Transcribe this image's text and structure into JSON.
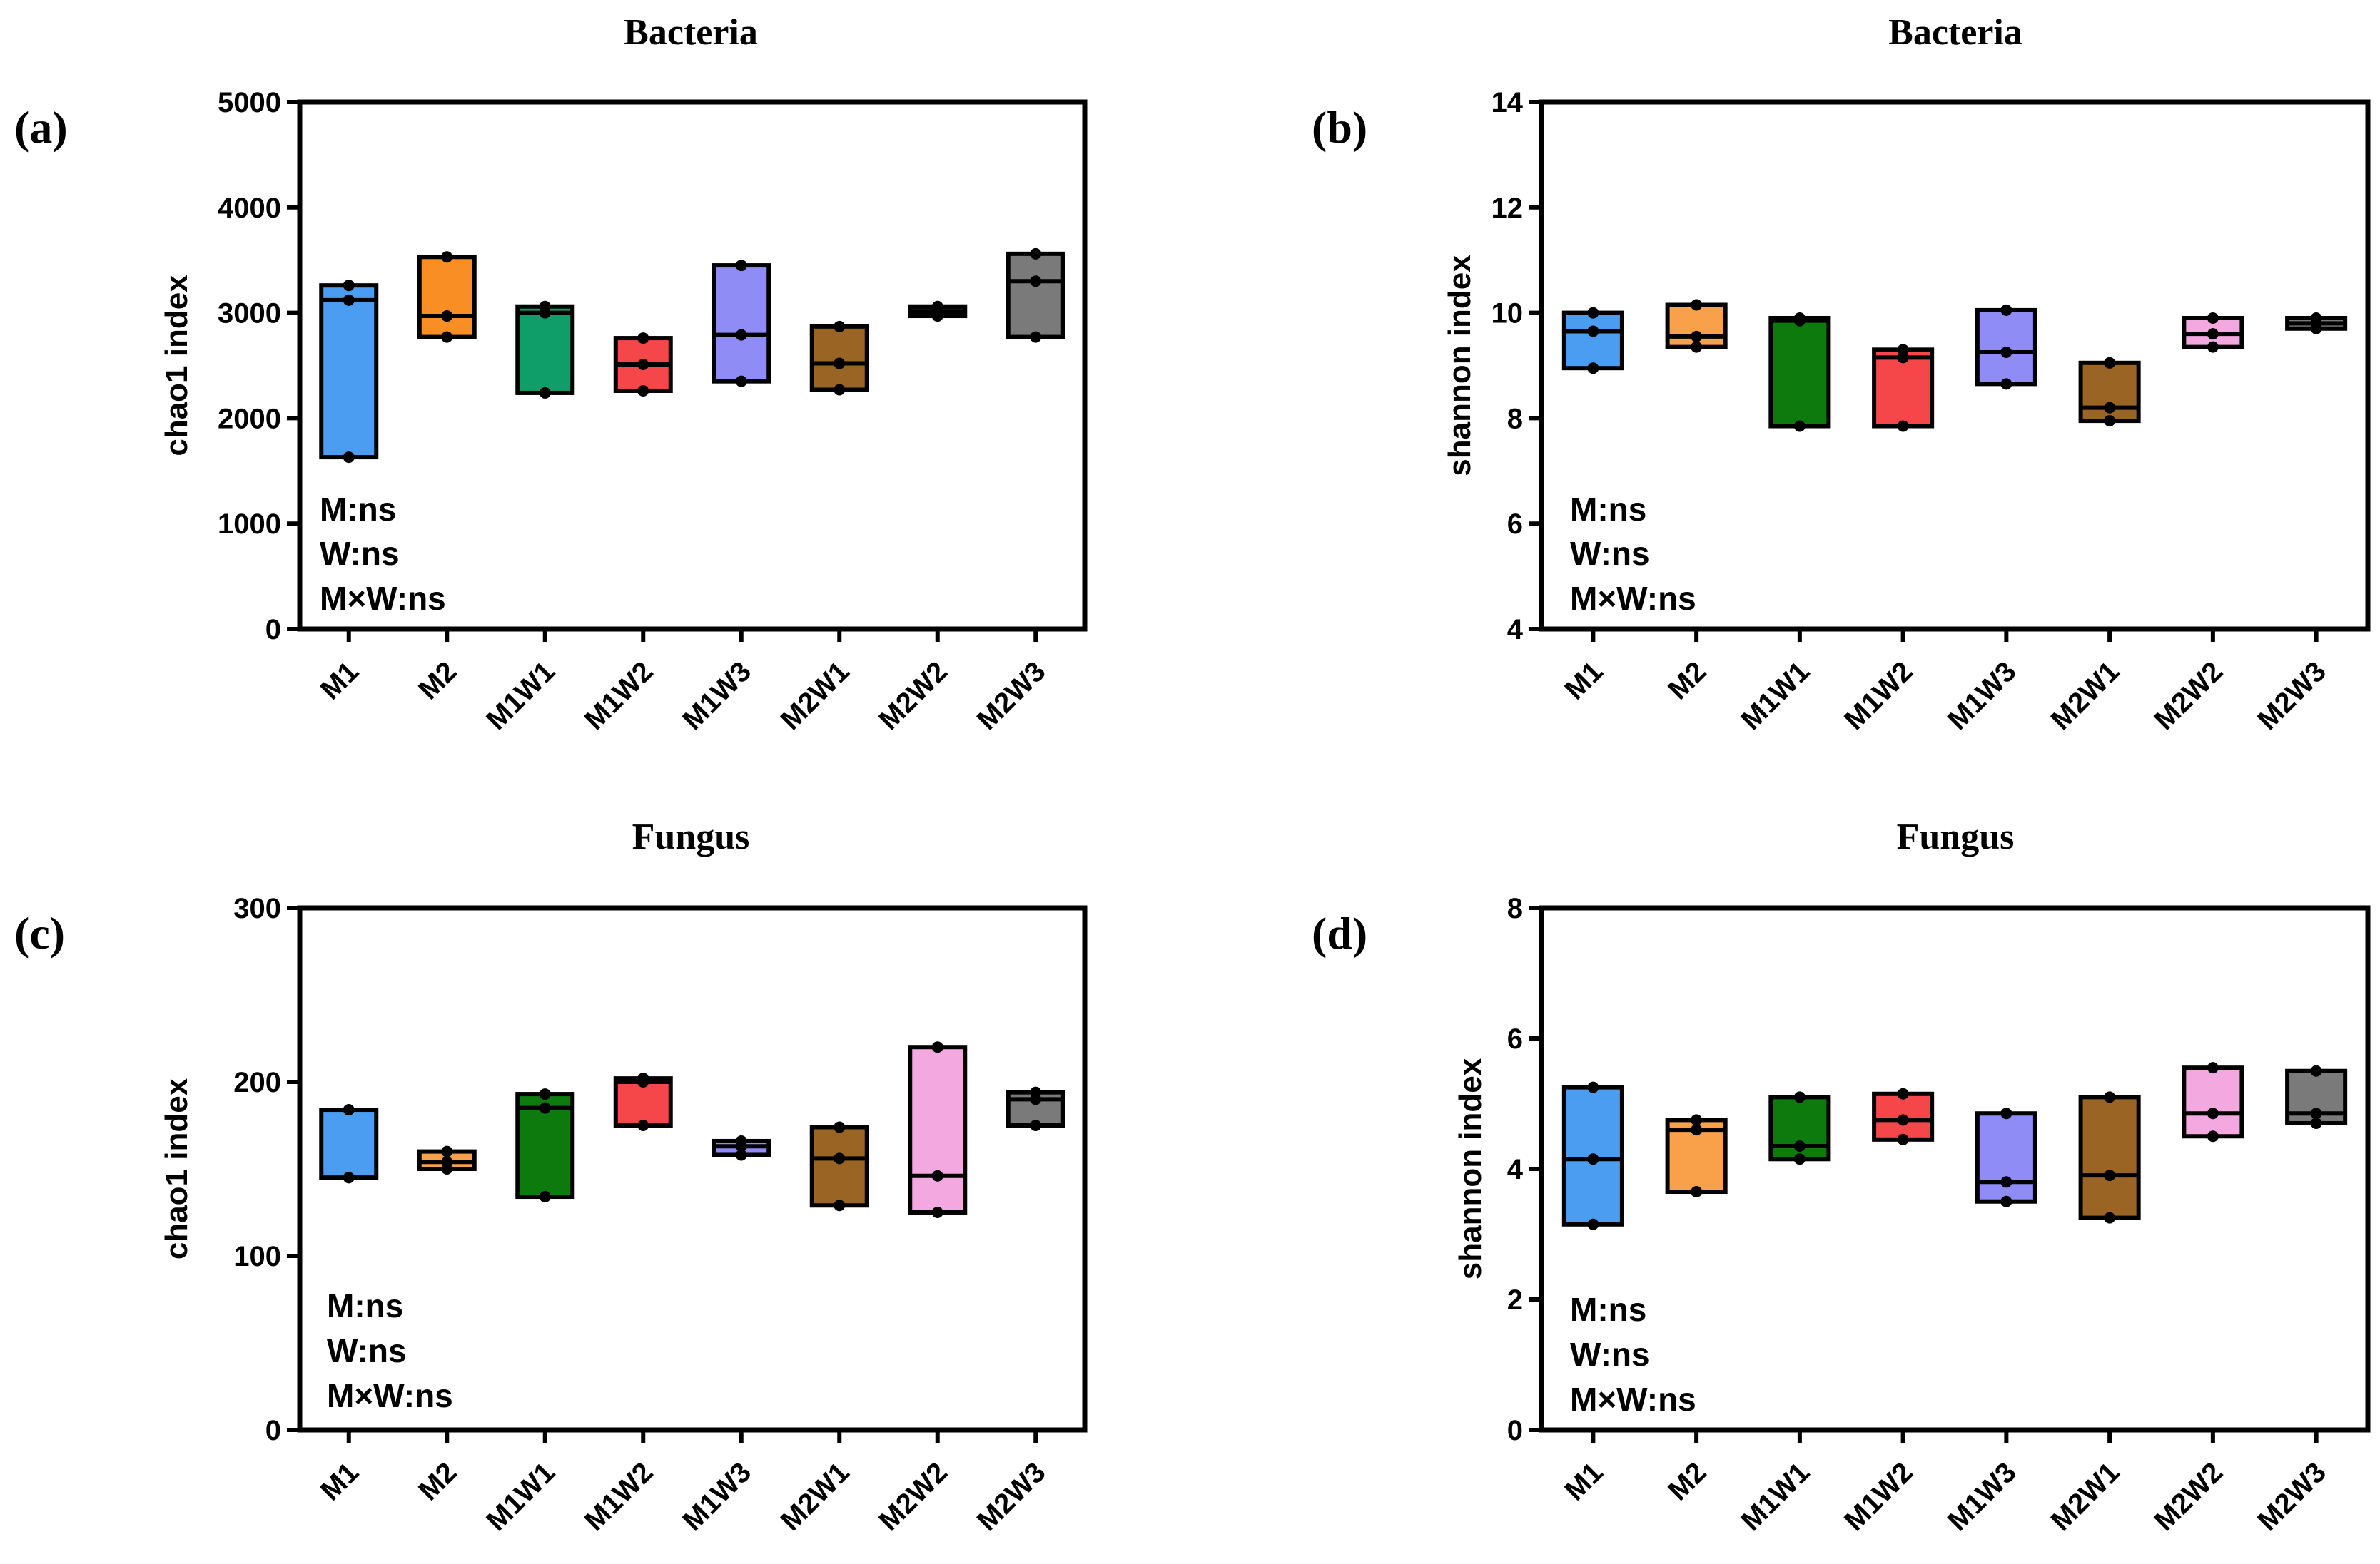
{
  "figure": {
    "caption_labels": [
      "(a)",
      "(b)",
      "(c)",
      "(d)"
    ]
  },
  "chart_data": [
    {
      "type": "floating-bar",
      "panel_label": "(a)",
      "title": "Bacteria",
      "ylabel": "chao1 index",
      "xlabel": "",
      "ylim": [
        0,
        5000
      ],
      "yticks": [
        0,
        1000,
        2000,
        3000,
        4000,
        5000
      ],
      "categories": [
        "M1",
        "M2",
        "M1W1",
        "M1W2",
        "M1W3",
        "M2W1",
        "M2W2",
        "M2W3"
      ],
      "colors": [
        "#4a9df0",
        "#f98f24",
        "#0f9e6a",
        "#f5474a",
        "#8f8cf5",
        "#9a6424",
        "#111111",
        "#7a7a7a"
      ],
      "series": [
        {
          "name": "min",
          "values": [
            1630,
            2770,
            2240,
            2260,
            2350,
            2270,
            2970,
            2770
          ]
        },
        {
          "name": "median",
          "values": [
            3120,
            2970,
            3000,
            2510,
            2790,
            2520,
            3010,
            3300
          ]
        },
        {
          "name": "max",
          "values": [
            3260,
            3530,
            3060,
            2760,
            3450,
            2870,
            3060,
            3560
          ]
        }
      ],
      "points": [
        [
          1630,
          3120,
          3260
        ],
        [
          2770,
          2970,
          3530
        ],
        [
          2240,
          3000,
          3060
        ],
        [
          2260,
          2510,
          2760
        ],
        [
          2350,
          2790,
          3450
        ],
        [
          2270,
          2520,
          2870
        ],
        [
          2970,
          3010,
          3060
        ],
        [
          2770,
          3300,
          3560
        ]
      ],
      "annotations": [
        "M:ns",
        "W:ns",
        "M×W:ns"
      ]
    },
    {
      "type": "floating-bar",
      "panel_label": "(b)",
      "title": "Bacteria",
      "ylabel": "shannon index",
      "xlabel": "",
      "ylim": [
        4,
        14
      ],
      "yticks": [
        4,
        6,
        8,
        10,
        12,
        14
      ],
      "categories": [
        "M1",
        "M2",
        "M1W1",
        "M1W2",
        "M1W3",
        "M2W1",
        "M2W2",
        "M2W3"
      ],
      "colors": [
        "#4a9df0",
        "#f9a04a",
        "#0c7a0c",
        "#f5474a",
        "#8f8cf5",
        "#9a6424",
        "#f4a8e0",
        "#7a7a7a"
      ],
      "series": [
        {
          "name": "min",
          "values": [
            8.95,
            9.35,
            7.85,
            7.85,
            8.65,
            7.95,
            9.35,
            9.7
          ]
        },
        {
          "name": "median",
          "values": [
            9.65,
            9.55,
            9.85,
            9.15,
            9.25,
            8.2,
            9.6,
            9.8
          ]
        },
        {
          "name": "max",
          "values": [
            10.0,
            10.15,
            9.9,
            9.3,
            10.05,
            9.05,
            9.9,
            9.9
          ]
        }
      ],
      "points": [
        [
          8.95,
          9.65,
          10.0
        ],
        [
          9.35,
          9.55,
          10.15
        ],
        [
          7.85,
          9.85,
          9.9
        ],
        [
          7.85,
          9.15,
          9.3
        ],
        [
          8.65,
          9.25,
          10.05
        ],
        [
          7.95,
          8.2,
          9.05
        ],
        [
          9.35,
          9.6,
          9.9
        ],
        [
          9.7,
          9.8,
          9.9
        ]
      ],
      "annotations": [
        "M:ns",
        "W:ns",
        "M×W:ns"
      ]
    },
    {
      "type": "floating-bar",
      "panel_label": "(c)",
      "title": "Fungus",
      "ylabel": "chao1 index",
      "xlabel": "",
      "ylim": [
        0,
        300
      ],
      "yticks": [
        0,
        100,
        200,
        300
      ],
      "categories": [
        "M1",
        "M2",
        "M1W1",
        "M1W2",
        "M1W3",
        "M2W1",
        "M2W2",
        "M2W3"
      ],
      "colors": [
        "#4a9df0",
        "#f9a04a",
        "#0c7a0c",
        "#f5474a",
        "#8f8cf5",
        "#9a6424",
        "#f4a8e0",
        "#7a7a7a"
      ],
      "series": [
        {
          "name": "min",
          "values": [
            145,
            150,
            134,
            175,
            158,
            129,
            125,
            175
          ]
        },
        {
          "name": "median",
          "values": [
            145,
            154,
            185,
            200,
            163,
            156,
            146,
            190
          ]
        },
        {
          "name": "max",
          "values": [
            184,
            160,
            193,
            202,
            166,
            174,
            220,
            194
          ]
        }
      ],
      "points": [
        [
          145,
          145,
          184
        ],
        [
          150,
          154,
          160
        ],
        [
          134,
          185,
          193
        ],
        [
          175,
          200,
          202
        ],
        [
          158,
          163,
          166
        ],
        [
          129,
          156,
          174
        ],
        [
          125,
          146,
          220
        ],
        [
          175,
          190,
          194
        ]
      ],
      "annotations": [
        "M:ns",
        "W:ns",
        "M×W:ns"
      ]
    },
    {
      "type": "floating-bar",
      "panel_label": "(d)",
      "title": "Fungus",
      "ylabel": "shannon index",
      "xlabel": "",
      "ylim": [
        0,
        8
      ],
      "yticks": [
        0,
        2,
        4,
        6,
        8
      ],
      "categories": [
        "M1",
        "M2",
        "M1W1",
        "M1W2",
        "M1W3",
        "M2W1",
        "M2W2",
        "M2W3"
      ],
      "colors": [
        "#4a9df0",
        "#f9a04a",
        "#0c7a0c",
        "#f5474a",
        "#8f8cf5",
        "#9a6424",
        "#f4a8e0",
        "#7a7a7a"
      ],
      "series": [
        {
          "name": "min",
          "values": [
            3.15,
            3.65,
            4.15,
            4.45,
            3.5,
            3.25,
            4.5,
            4.7
          ]
        },
        {
          "name": "median",
          "values": [
            4.15,
            4.6,
            4.35,
            4.75,
            3.8,
            3.9,
            4.85,
            4.85
          ]
        },
        {
          "name": "max",
          "values": [
            5.25,
            4.75,
            5.1,
            5.15,
            4.85,
            5.1,
            5.55,
            5.5
          ]
        }
      ],
      "points": [
        [
          3.15,
          4.15,
          5.25
        ],
        [
          3.65,
          4.6,
          4.75
        ],
        [
          4.15,
          4.35,
          5.1
        ],
        [
          4.45,
          4.75,
          5.15
        ],
        [
          3.5,
          3.8,
          4.85
        ],
        [
          3.25,
          3.9,
          5.1
        ],
        [
          4.5,
          4.85,
          5.55
        ],
        [
          4.7,
          4.85,
          5.5
        ]
      ],
      "annotations": [
        "M:ns",
        "W:ns",
        "M×W:ns"
      ]
    }
  ]
}
